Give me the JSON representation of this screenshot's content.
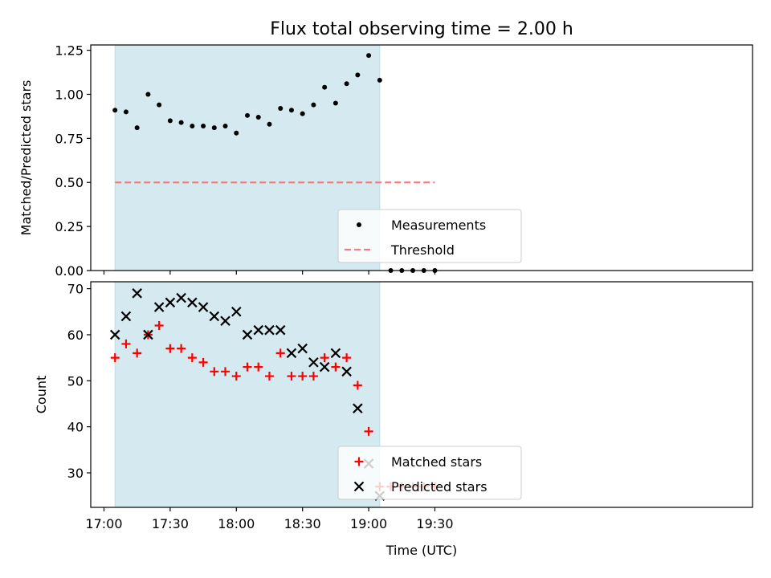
{
  "title": "Flux total observing time = 2.00 h",
  "xlabel": "Time (UTC)",
  "colors": {
    "span": "#d4eaf0",
    "measurement": "#000000",
    "threshold": "#f08080",
    "matched": "#ff0000",
    "predicted": "#000000"
  },
  "chart_data": [
    {
      "type": "scatter",
      "panel": "top",
      "ylabel": "Matched/Predicted stars",
      "xlim_minutes_after_17_00": [
        -6,
        294
      ],
      "ylim": [
        0,
        1.28
      ],
      "x_ticks": [
        "17:00",
        "17:30",
        "18:00",
        "18:30",
        "19:00",
        "19:30"
      ],
      "y_ticks": [
        "0.00",
        "0.25",
        "0.50",
        "0.75",
        "1.00",
        "1.25"
      ],
      "observing_span": [
        "17:05",
        "19:05"
      ],
      "legend_position": "lower center",
      "series": [
        {
          "name": "Measurements",
          "marker": "dot",
          "x": [
            "17:05",
            "17:10",
            "17:15",
            "17:20",
            "17:25",
            "17:30",
            "17:35",
            "17:40",
            "17:45",
            "17:50",
            "17:55",
            "18:00",
            "18:05",
            "18:10",
            "18:15",
            "18:20",
            "18:25",
            "18:30",
            "18:35",
            "18:40",
            "18:45",
            "18:50",
            "18:55",
            "19:00",
            "19:05",
            "19:10",
            "19:15",
            "19:20",
            "19:25",
            "19:30"
          ],
          "y": [
            0.91,
            0.9,
            0.81,
            1.0,
            0.94,
            0.85,
            0.84,
            0.82,
            0.82,
            0.81,
            0.82,
            0.78,
            0.88,
            0.87,
            0.83,
            0.92,
            0.91,
            0.89,
            0.94,
            1.04,
            0.95,
            1.06,
            1.11,
            1.22,
            1.08,
            0,
            0,
            0,
            0,
            0
          ]
        },
        {
          "name": "Threshold",
          "style": "dashed",
          "x": [
            "17:05",
            "19:30"
          ],
          "y": [
            0.5,
            0.5
          ]
        }
      ]
    },
    {
      "type": "scatter",
      "panel": "bottom",
      "ylabel": "Count",
      "xlim_minutes_after_17_00": [
        -6,
        294
      ],
      "ylim": [
        22.5,
        71.5
      ],
      "x_ticks": [
        "17:00",
        "17:30",
        "18:00",
        "18:30",
        "19:00",
        "19:30"
      ],
      "y_ticks": [
        "30",
        "40",
        "50",
        "60",
        "70"
      ],
      "observing_span": [
        "17:05",
        "19:05"
      ],
      "legend_position": "lower center",
      "series": [
        {
          "name": "Matched stars",
          "marker": "plus",
          "x": [
            "17:05",
            "17:10",
            "17:15",
            "17:20",
            "17:25",
            "17:30",
            "17:35",
            "17:40",
            "17:45",
            "17:50",
            "17:55",
            "18:00",
            "18:05",
            "18:10",
            "18:15",
            "18:20",
            "18:25",
            "18:30",
            "18:35",
            "18:40",
            "18:45",
            "18:50",
            "18:55",
            "19:00",
            "19:05",
            "19:10",
            "19:15",
            "19:20",
            "19:25",
            "19:30"
          ],
          "y": [
            55,
            58,
            56,
            60,
            62,
            57,
            57,
            55,
            54,
            52,
            52,
            51,
            53,
            53,
            51,
            56,
            51,
            51,
            51,
            55,
            53,
            55,
            49,
            39,
            27,
            27,
            27,
            27,
            27,
            27
          ]
        },
        {
          "name": "Predicted stars",
          "marker": "x",
          "x": [
            "17:05",
            "17:10",
            "17:15",
            "17:20",
            "17:25",
            "17:30",
            "17:35",
            "17:40",
            "17:45",
            "17:50",
            "17:55",
            "18:00",
            "18:05",
            "18:10",
            "18:15",
            "18:20",
            "18:25",
            "18:30",
            "18:35",
            "18:40",
            "18:45",
            "18:50",
            "18:55",
            "19:00",
            "19:05"
          ],
          "y": [
            60,
            64,
            69,
            60,
            66,
            67,
            68,
            67,
            66,
            64,
            63,
            65,
            60,
            61,
            61,
            61,
            56,
            57,
            54,
            53,
            56,
            52,
            44,
            32,
            25
          ]
        }
      ]
    }
  ]
}
